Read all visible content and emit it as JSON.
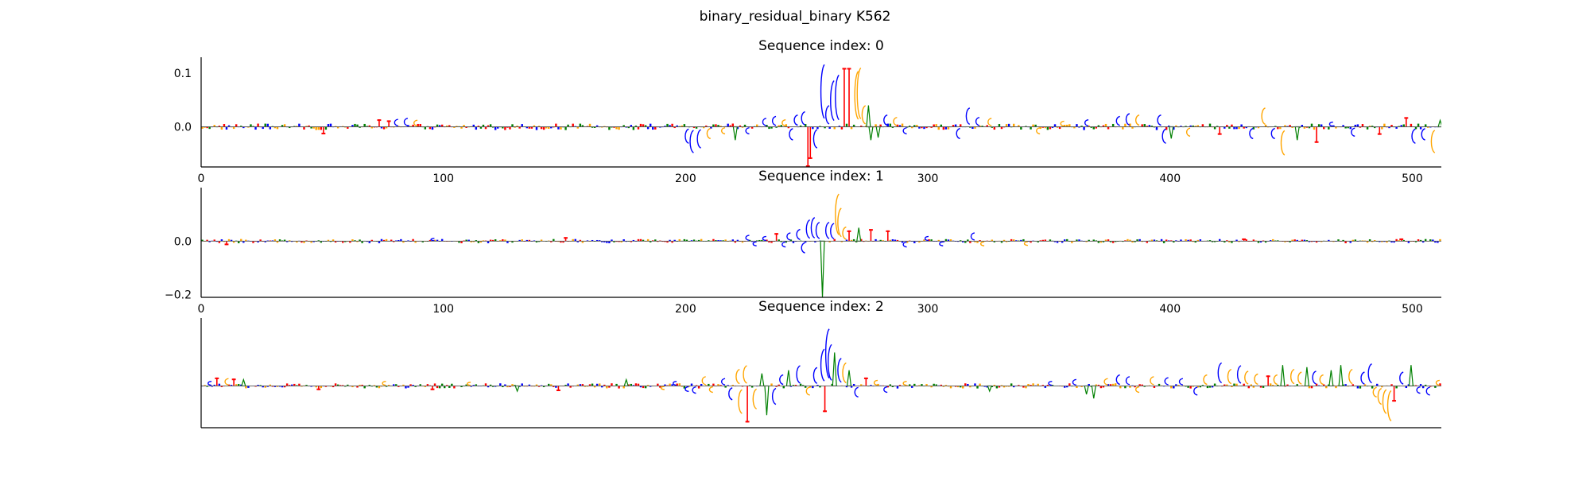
{
  "figure_title": "binary_residual_binary K562",
  "colors": {
    "A": "#008000",
    "C": "#0000ff",
    "G": "#ffa500",
    "T": "#ff0000"
  },
  "chart_data": [
    {
      "type": "sequence-logo",
      "title": "Sequence index: 0",
      "xlim": [
        0,
        512
      ],
      "ylim": [
        -0.075,
        0.13
      ],
      "x_ticks": [
        0,
        100,
        200,
        300,
        400,
        500
      ],
      "x_tick_labels": [
        "0",
        "100",
        "200",
        "300",
        "400",
        "500"
      ],
      "y_ticks": [
        0.1,
        0.0
      ],
      "y_tick_labels": [
        "0.1",
        "0.0"
      ],
      "baseline_amplitude": 0.006,
      "peaks": [
        {
          "x": 73,
          "base": "T",
          "value": 0.014
        },
        {
          "x": 77,
          "base": "T",
          "value": 0.012
        },
        {
          "x": 80,
          "base": "C",
          "value": 0.016
        },
        {
          "x": 84,
          "base": "C",
          "value": 0.018
        },
        {
          "x": 88,
          "base": "G",
          "value": 0.014
        },
        {
          "x": 50,
          "base": "T",
          "value": -0.014
        },
        {
          "x": 200,
          "base": "C",
          "value": -0.035
        },
        {
          "x": 202,
          "base": "C",
          "value": -0.055
        },
        {
          "x": 205,
          "base": "C",
          "value": -0.045
        },
        {
          "x": 209,
          "base": "G",
          "value": -0.025
        },
        {
          "x": 215,
          "base": "G",
          "value": -0.015
        },
        {
          "x": 220,
          "base": "A",
          "value": -0.025
        },
        {
          "x": 225,
          "base": "C",
          "value": -0.015
        },
        {
          "x": 232,
          "base": "C",
          "value": 0.018
        },
        {
          "x": 236,
          "base": "C",
          "value": 0.022
        },
        {
          "x": 240,
          "base": "G",
          "value": 0.015
        },
        {
          "x": 243,
          "base": "C",
          "value": -0.028
        },
        {
          "x": 245,
          "base": "C",
          "value": 0.025
        },
        {
          "x": 248,
          "base": "C",
          "value": 0.032
        },
        {
          "x": 250,
          "base": "T",
          "value": -0.075
        },
        {
          "x": 251,
          "base": "T",
          "value": -0.06
        },
        {
          "x": 253,
          "base": "C",
          "value": -0.045
        },
        {
          "x": 256,
          "base": "C",
          "value": 0.132
        },
        {
          "x": 258,
          "base": "C",
          "value": 0.045
        },
        {
          "x": 260,
          "base": "C",
          "value": 0.098
        },
        {
          "x": 262,
          "base": "C",
          "value": 0.11
        },
        {
          "x": 265,
          "base": "T",
          "value": 0.11
        },
        {
          "x": 267,
          "base": "T",
          "value": 0.11
        },
        {
          "x": 270,
          "base": "G",
          "value": 0.118
        },
        {
          "x": 271,
          "base": "G",
          "value": 0.125
        },
        {
          "x": 273,
          "base": "G",
          "value": 0.045
        },
        {
          "x": 275,
          "base": "A",
          "value": 0.04
        },
        {
          "x": 276,
          "base": "A",
          "value": -0.025
        },
        {
          "x": 279,
          "base": "A",
          "value": -0.02
        },
        {
          "x": 282,
          "base": "C",
          "value": 0.025
        },
        {
          "x": 286,
          "base": "G",
          "value": 0.02
        },
        {
          "x": 290,
          "base": "C",
          "value": -0.015
        },
        {
          "x": 312,
          "base": "C",
          "value": -0.025
        },
        {
          "x": 316,
          "base": "C",
          "value": 0.04
        },
        {
          "x": 320,
          "base": "C",
          "value": 0.02
        },
        {
          "x": 325,
          "base": "G",
          "value": 0.018
        },
        {
          "x": 345,
          "base": "G",
          "value": -0.015
        },
        {
          "x": 355,
          "base": "G",
          "value": 0.012
        },
        {
          "x": 365,
          "base": "C",
          "value": 0.015
        },
        {
          "x": 378,
          "base": "C",
          "value": 0.022
        },
        {
          "x": 382,
          "base": "C",
          "value": 0.028
        },
        {
          "x": 386,
          "base": "G",
          "value": 0.025
        },
        {
          "x": 395,
          "base": "C",
          "value": 0.025
        },
        {
          "x": 397,
          "base": "C",
          "value": -0.035
        },
        {
          "x": 400,
          "base": "A",
          "value": -0.022
        },
        {
          "x": 407,
          "base": "G",
          "value": -0.02
        },
        {
          "x": 420,
          "base": "T",
          "value": -0.015
        },
        {
          "x": 433,
          "base": "C",
          "value": -0.025
        },
        {
          "x": 438,
          "base": "G",
          "value": 0.04
        },
        {
          "x": 442,
          "base": "C",
          "value": -0.025
        },
        {
          "x": 446,
          "base": "G",
          "value": -0.06
        },
        {
          "x": 452,
          "base": "A",
          "value": -0.025
        },
        {
          "x": 460,
          "base": "T",
          "value": -0.03
        },
        {
          "x": 466,
          "base": "C",
          "value": 0.01
        },
        {
          "x": 475,
          "base": "C",
          "value": -0.02
        },
        {
          "x": 486,
          "base": "T",
          "value": -0.015
        },
        {
          "x": 497,
          "base": "T",
          "value": 0.018
        },
        {
          "x": 500,
          "base": "C",
          "value": -0.035
        },
        {
          "x": 504,
          "base": "C",
          "value": -0.028
        },
        {
          "x": 508,
          "base": "G",
          "value": -0.055
        },
        {
          "x": 511,
          "base": "A",
          "value": 0.012
        }
      ]
    },
    {
      "type": "sequence-logo",
      "title": "Sequence index: 1",
      "xlim": [
        0,
        512
      ],
      "ylim": [
        -0.21,
        0.2
      ],
      "x_ticks": [
        0,
        100,
        200,
        300,
        400,
        500
      ],
      "x_tick_labels": [
        "0",
        "100",
        "200",
        "300",
        "400",
        "500"
      ],
      "y_ticks": [
        0.0,
        -0.2
      ],
      "y_tick_labels": [
        "0.0",
        "−0.2"
      ],
      "baseline_amplitude": 0.008,
      "peaks": [
        {
          "x": 10,
          "base": "T",
          "value": -0.015
        },
        {
          "x": 95,
          "base": "C",
          "value": 0.012
        },
        {
          "x": 150,
          "base": "T",
          "value": 0.015
        },
        {
          "x": 225,
          "base": "C",
          "value": 0.025
        },
        {
          "x": 228,
          "base": "C",
          "value": -0.02
        },
        {
          "x": 232,
          "base": "C",
          "value": 0.02
        },
        {
          "x": 237,
          "base": "T",
          "value": 0.03
        },
        {
          "x": 240,
          "base": "C",
          "value": -0.025
        },
        {
          "x": 242,
          "base": "C",
          "value": 0.035
        },
        {
          "x": 246,
          "base": "C",
          "value": 0.05
        },
        {
          "x": 248,
          "base": "C",
          "value": -0.05
        },
        {
          "x": 250,
          "base": "C",
          "value": 0.09
        },
        {
          "x": 252,
          "base": "C",
          "value": 0.1
        },
        {
          "x": 254,
          "base": "C",
          "value": 0.08
        },
        {
          "x": 256,
          "base": "A",
          "value": -0.21
        },
        {
          "x": 258,
          "base": "C",
          "value": 0.08
        },
        {
          "x": 260,
          "base": "C",
          "value": 0.075
        },
        {
          "x": 262,
          "base": "G",
          "value": 0.2
        },
        {
          "x": 263,
          "base": "G",
          "value": 0.14
        },
        {
          "x": 265,
          "base": "G",
          "value": 0.06
        },
        {
          "x": 267,
          "base": "T",
          "value": 0.04
        },
        {
          "x": 271,
          "base": "A",
          "value": 0.05
        },
        {
          "x": 276,
          "base": "T",
          "value": 0.045
        },
        {
          "x": 283,
          "base": "T",
          "value": 0.04
        },
        {
          "x": 290,
          "base": "C",
          "value": -0.025
        },
        {
          "x": 299,
          "base": "C",
          "value": 0.02
        },
        {
          "x": 305,
          "base": "C",
          "value": -0.02
        },
        {
          "x": 318,
          "base": "C",
          "value": 0.035
        },
        {
          "x": 322,
          "base": "G",
          "value": -0.02
        },
        {
          "x": 340,
          "base": "G",
          "value": -0.018
        },
        {
          "x": 430,
          "base": "T",
          "value": 0.01
        },
        {
          "x": 495,
          "base": "T",
          "value": 0.01
        }
      ]
    },
    {
      "type": "sequence-logo",
      "title": "Sequence index: 2",
      "xlim": [
        0,
        512
      ],
      "ylim": [
        -0.4,
        0.65
      ],
      "x_ticks": [],
      "x_tick_labels": [],
      "y_ticks": [],
      "y_tick_labels": [],
      "baseline_amplitude": 0.025,
      "peaks": [
        {
          "x": 3,
          "base": "C",
          "value": 0.05
        },
        {
          "x": 6,
          "base": "T",
          "value": 0.08
        },
        {
          "x": 10,
          "base": "G",
          "value": 0.08
        },
        {
          "x": 13,
          "base": "T",
          "value": 0.07
        },
        {
          "x": 17,
          "base": "A",
          "value": 0.06
        },
        {
          "x": 48,
          "base": "T",
          "value": -0.04
        },
        {
          "x": 75,
          "base": "G",
          "value": 0.05
        },
        {
          "x": 95,
          "base": "T",
          "value": -0.04
        },
        {
          "x": 110,
          "base": "G",
          "value": 0.04
        },
        {
          "x": 130,
          "base": "A",
          "value": -0.05
        },
        {
          "x": 147,
          "base": "T",
          "value": -0.05
        },
        {
          "x": 175,
          "base": "A",
          "value": 0.06
        },
        {
          "x": 190,
          "base": "G",
          "value": -0.04
        },
        {
          "x": 195,
          "base": "C",
          "value": 0.05
        },
        {
          "x": 200,
          "base": "C",
          "value": -0.06
        },
        {
          "x": 203,
          "base": "C",
          "value": -0.08
        },
        {
          "x": 207,
          "base": "G",
          "value": 0.1
        },
        {
          "x": 210,
          "base": "G",
          "value": -0.07
        },
        {
          "x": 215,
          "base": "C",
          "value": 0.08
        },
        {
          "x": 218,
          "base": "C",
          "value": -0.15
        },
        {
          "x": 221,
          "base": "G",
          "value": 0.18
        },
        {
          "x": 222,
          "base": "G",
          "value": -0.3
        },
        {
          "x": 224,
          "base": "G",
          "value": 0.22
        },
        {
          "x": 225,
          "base": "T",
          "value": -0.35
        },
        {
          "x": 228,
          "base": "G",
          "value": -0.25
        },
        {
          "x": 231,
          "base": "A",
          "value": 0.12
        },
        {
          "x": 233,
          "base": "A",
          "value": -0.28
        },
        {
          "x": 236,
          "base": "C",
          "value": -0.2
        },
        {
          "x": 239,
          "base": "C",
          "value": 0.12
        },
        {
          "x": 242,
          "base": "A",
          "value": 0.15
        },
        {
          "x": 246,
          "base": "C",
          "value": 0.22
        },
        {
          "x": 250,
          "base": "G",
          "value": -0.1
        },
        {
          "x": 253,
          "base": "C",
          "value": 0.2
        },
        {
          "x": 256,
          "base": "C",
          "value": 0.4
        },
        {
          "x": 257,
          "base": "T",
          "value": -0.25
        },
        {
          "x": 258,
          "base": "C",
          "value": 0.62
        },
        {
          "x": 259,
          "base": "C",
          "value": 0.45
        },
        {
          "x": 261,
          "base": "A",
          "value": 0.32
        },
        {
          "x": 263,
          "base": "C",
          "value": 0.3
        },
        {
          "x": 265,
          "base": "G",
          "value": 0.25
        },
        {
          "x": 267,
          "base": "A",
          "value": 0.15
        },
        {
          "x": 270,
          "base": "C",
          "value": -0.12
        },
        {
          "x": 274,
          "base": "T",
          "value": 0.08
        },
        {
          "x": 278,
          "base": "G",
          "value": 0.06
        },
        {
          "x": 282,
          "base": "C",
          "value": -0.07
        },
        {
          "x": 290,
          "base": "G",
          "value": 0.05
        },
        {
          "x": 325,
          "base": "A",
          "value": -0.05
        },
        {
          "x": 350,
          "base": "C",
          "value": 0.05
        },
        {
          "x": 360,
          "base": "C",
          "value": 0.07
        },
        {
          "x": 365,
          "base": "A",
          "value": -0.08
        },
        {
          "x": 368,
          "base": "A",
          "value": -0.12
        },
        {
          "x": 373,
          "base": "G",
          "value": 0.08
        },
        {
          "x": 378,
          "base": "C",
          "value": 0.12
        },
        {
          "x": 382,
          "base": "C",
          "value": 0.1
        },
        {
          "x": 386,
          "base": "G",
          "value": -0.07
        },
        {
          "x": 392,
          "base": "G",
          "value": 0.1
        },
        {
          "x": 398,
          "base": "C",
          "value": 0.09
        },
        {
          "x": 404,
          "base": "C",
          "value": 0.08
        },
        {
          "x": 410,
          "base": "C",
          "value": -0.1
        },
        {
          "x": 414,
          "base": "G",
          "value": 0.12
        },
        {
          "x": 420,
          "base": "C",
          "value": 0.25
        },
        {
          "x": 424,
          "base": "G",
          "value": 0.18
        },
        {
          "x": 428,
          "base": "C",
          "value": 0.22
        },
        {
          "x": 431,
          "base": "G",
          "value": 0.16
        },
        {
          "x": 435,
          "base": "G",
          "value": 0.13
        },
        {
          "x": 440,
          "base": "T",
          "value": 0.1
        },
        {
          "x": 443,
          "base": "G",
          "value": 0.12
        },
        {
          "x": 446,
          "base": "A",
          "value": 0.2
        },
        {
          "x": 450,
          "base": "G",
          "value": 0.18
        },
        {
          "x": 453,
          "base": "G",
          "value": 0.15
        },
        {
          "x": 456,
          "base": "A",
          "value": 0.18
        },
        {
          "x": 459,
          "base": "C",
          "value": 0.16
        },
        {
          "x": 462,
          "base": "G",
          "value": 0.12
        },
        {
          "x": 466,
          "base": "A",
          "value": 0.15
        },
        {
          "x": 470,
          "base": "A",
          "value": 0.2
        },
        {
          "x": 474,
          "base": "G",
          "value": 0.18
        },
        {
          "x": 479,
          "base": "C",
          "value": 0.15
        },
        {
          "x": 482,
          "base": "C",
          "value": 0.24
        },
        {
          "x": 484,
          "base": "G",
          "value": -0.12
        },
        {
          "x": 486,
          "base": "G",
          "value": -0.2
        },
        {
          "x": 488,
          "base": "G",
          "value": -0.3
        },
        {
          "x": 490,
          "base": "G",
          "value": -0.38
        },
        {
          "x": 492,
          "base": "T",
          "value": -0.15
        },
        {
          "x": 495,
          "base": "C",
          "value": 0.15
        },
        {
          "x": 499,
          "base": "A",
          "value": 0.2
        },
        {
          "x": 502,
          "base": "C",
          "value": -0.08
        },
        {
          "x": 506,
          "base": "C",
          "value": -0.1
        },
        {
          "x": 510,
          "base": "G",
          "value": 0.06
        }
      ]
    }
  ]
}
